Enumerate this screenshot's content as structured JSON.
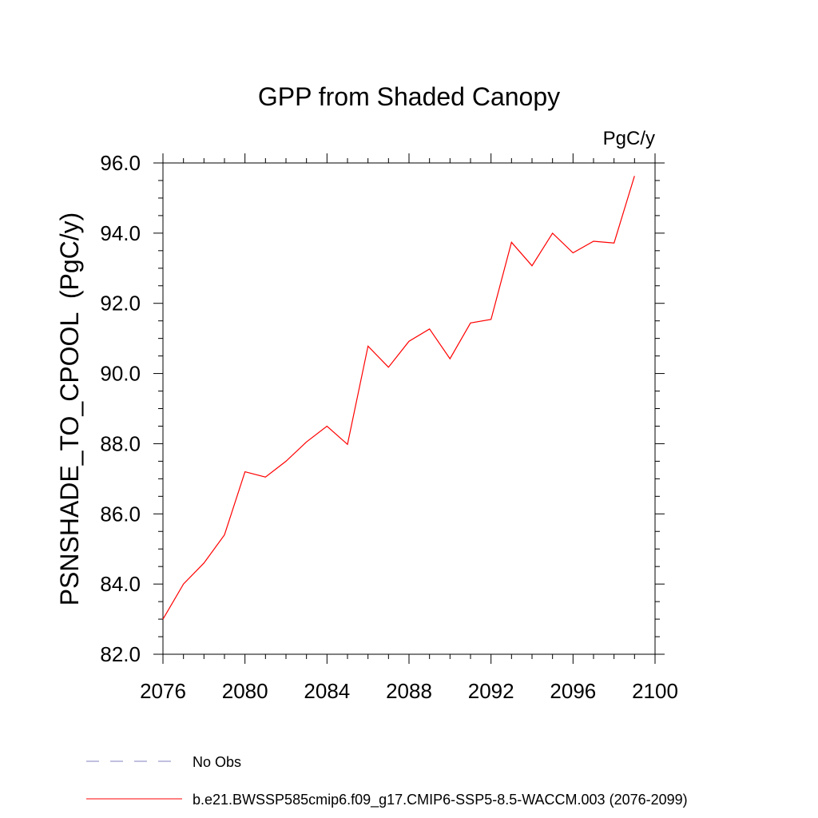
{
  "chart_data": {
    "type": "line",
    "title": "GPP from Shaded Canopy",
    "units": "PgC/y",
    "ylabel": "PSNSHADE_TO_CPOOL  (PgC/y)",
    "xlabel": "",
    "xlim": [
      2076,
      2100
    ],
    "ylim": [
      82.0,
      96.0
    ],
    "x_ticks": [
      2076,
      2080,
      2084,
      2088,
      2092,
      2096,
      2100
    ],
    "y_ticks": [
      "82.0",
      "84.0",
      "86.0",
      "88.0",
      "90.0",
      "92.0",
      "94.0",
      "96.0"
    ],
    "grid": false,
    "legend_position": "bottom-left",
    "series": [
      {
        "name": "b.e21.BWSSP585cmip6.f09_g17.CMIP6-SSP5-8.5-WACCM.003 (2076-2099)",
        "color": "#ff0000",
        "x": [
          2076,
          2077,
          2078,
          2079,
          2080,
          2081,
          2082,
          2083,
          2084,
          2085,
          2086,
          2087,
          2088,
          2089,
          2090,
          2091,
          2092,
          2093,
          2094,
          2095,
          2096,
          2097,
          2098,
          2099
        ],
        "values": [
          83.0,
          84.0,
          84.6,
          85.4,
          87.2,
          87.05,
          87.5,
          88.05,
          88.5,
          87.98,
          90.78,
          90.18,
          90.92,
          91.27,
          90.42,
          91.44,
          91.54,
          93.74,
          93.07,
          94.0,
          93.44,
          93.77,
          93.72,
          95.63
        ]
      }
    ],
    "legend": [
      {
        "label": "No Obs",
        "color": "#8080c0",
        "style": "dashed"
      },
      {
        "label": "b.e21.BWSSP585cmip6.f09_g17.CMIP6-SSP5-8.5-WACCM.003 (2076-2099)",
        "color": "#ff0000",
        "style": "solid"
      }
    ]
  }
}
